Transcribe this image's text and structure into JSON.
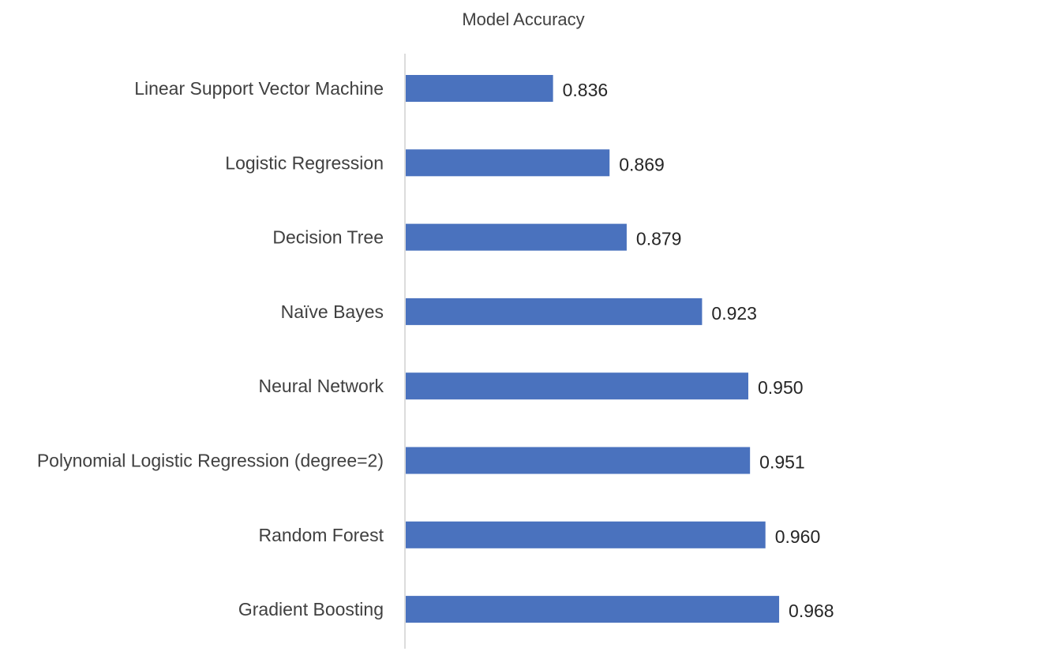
{
  "chart_data": {
    "type": "bar",
    "orientation": "horizontal",
    "title": "Model Accuracy",
    "xlabel": "",
    "ylabel": "",
    "categories": [
      "Linear Support Vector Machine",
      "Logistic Regression",
      "Decision Tree",
      "Naïve Bayes",
      "Neural Network",
      "Polynomial Logistic Regression (degree=2)",
      "Random Forest",
      "Gradient Boosting"
    ],
    "values": [
      0.836,
      0.869,
      0.879,
      0.923,
      0.95,
      0.951,
      0.96,
      0.968
    ],
    "data_labels": [
      "0.836",
      "0.869",
      "0.879",
      "0.923",
      "0.950",
      "0.951",
      "0.960",
      "0.968"
    ],
    "xlim": [
      0.75,
      1.0
    ],
    "grid": false,
    "legend": "none",
    "bar_color": "#4A72BE"
  }
}
